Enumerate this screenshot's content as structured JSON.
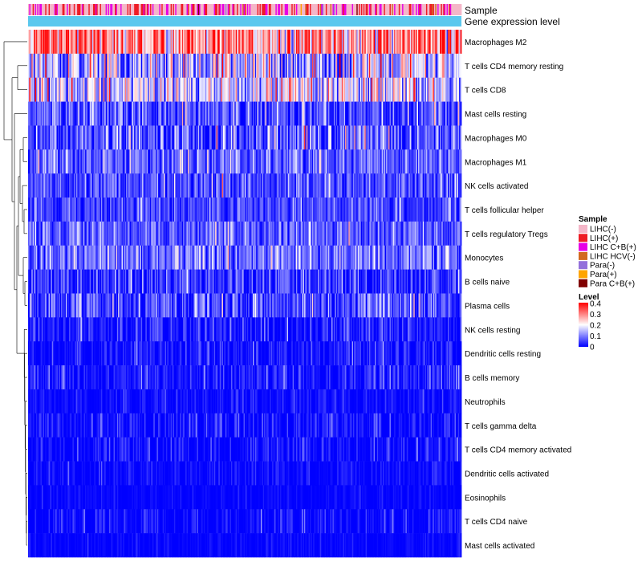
{
  "chart_data": {
    "type": "heatmap",
    "annotation_tracks": [
      "Sample",
      "Gene expression level"
    ],
    "gene_expression_track_color": "#5bc8ee",
    "rows": [
      {
        "label": "Macrophages M2",
        "mean": 0.27,
        "sd": 0.09
      },
      {
        "label": "T cells CD4 memory resting",
        "mean": 0.13,
        "sd": 0.09
      },
      {
        "label": "T cells CD8",
        "mean": 0.15,
        "sd": 0.09
      },
      {
        "label": "Mast cells resting",
        "mean": 0.06,
        "sd": 0.06
      },
      {
        "label": "Macrophages M0",
        "mean": 0.06,
        "sd": 0.07
      },
      {
        "label": "Macrophages M1",
        "mean": 0.07,
        "sd": 0.045
      },
      {
        "label": "NK cells activated",
        "mean": 0.055,
        "sd": 0.045
      },
      {
        "label": "T cells follicular helper",
        "mean": 0.05,
        "sd": 0.04
      },
      {
        "label": "T cells regulatory  Tregs",
        "mean": 0.065,
        "sd": 0.045
      },
      {
        "label": "Monocytes",
        "mean": 0.085,
        "sd": 0.05
      },
      {
        "label": "B cells naive",
        "mean": 0.04,
        "sd": 0.045
      },
      {
        "label": "Plasma cells",
        "mean": 0.045,
        "sd": 0.055
      },
      {
        "label": "NK cells resting",
        "mean": 0.015,
        "sd": 0.04
      },
      {
        "label": "Dendritic cells resting",
        "mean": 0.01,
        "sd": 0.03
      },
      {
        "label": "B cells memory",
        "mean": 0.012,
        "sd": 0.035
      },
      {
        "label": "Neutrophils",
        "mean": 0.008,
        "sd": 0.02
      },
      {
        "label": "T cells gamma delta",
        "mean": 0.004,
        "sd": 0.035
      },
      {
        "label": "T cells CD4 memory activated",
        "mean": 0.002,
        "sd": 0.03
      },
      {
        "label": "Dendritic cells activated",
        "mean": 0.001,
        "sd": 0.02
      },
      {
        "label": "Eosinophils",
        "mean": 0.001,
        "sd": 0.012
      },
      {
        "label": "T cells CD4 naive",
        "mean": 0.001,
        "sd": 0.03
      },
      {
        "label": "Mast cells activated",
        "mean": 0.001,
        "sd": 0.012
      }
    ],
    "n_columns": 380,
    "sample_groups": [
      {
        "label": "LIHC(-)",
        "color": "#f4b6c8"
      },
      {
        "label": "LIHC(+)",
        "color": "#ee1c24"
      },
      {
        "label": "LIHC C+B(+)",
        "color": "#e600e6"
      },
      {
        "label": "LIHC HCV(-)",
        "color": "#d2691e"
      },
      {
        "label": "Para(-)",
        "color": "#9370db"
      },
      {
        "label": "Para(+)",
        "color": "#ffa500"
      },
      {
        "label": "Para C+B(+)",
        "color": "#800000"
      }
    ],
    "sample_weights": [
      0.55,
      0.22,
      0.2,
      0.01,
      0.01,
      0.005,
      0.005
    ],
    "legend": {
      "sample_title": "Sample",
      "level_title": "Level",
      "level_ticks": [
        "0.4",
        "0.3",
        "0.2",
        "0.1",
        "0"
      ],
      "level_range": [
        0,
        0.4
      ],
      "level_colors": [
        "#0000ff",
        "#ffffff",
        "#ff0000"
      ],
      "placement": "right"
    }
  }
}
